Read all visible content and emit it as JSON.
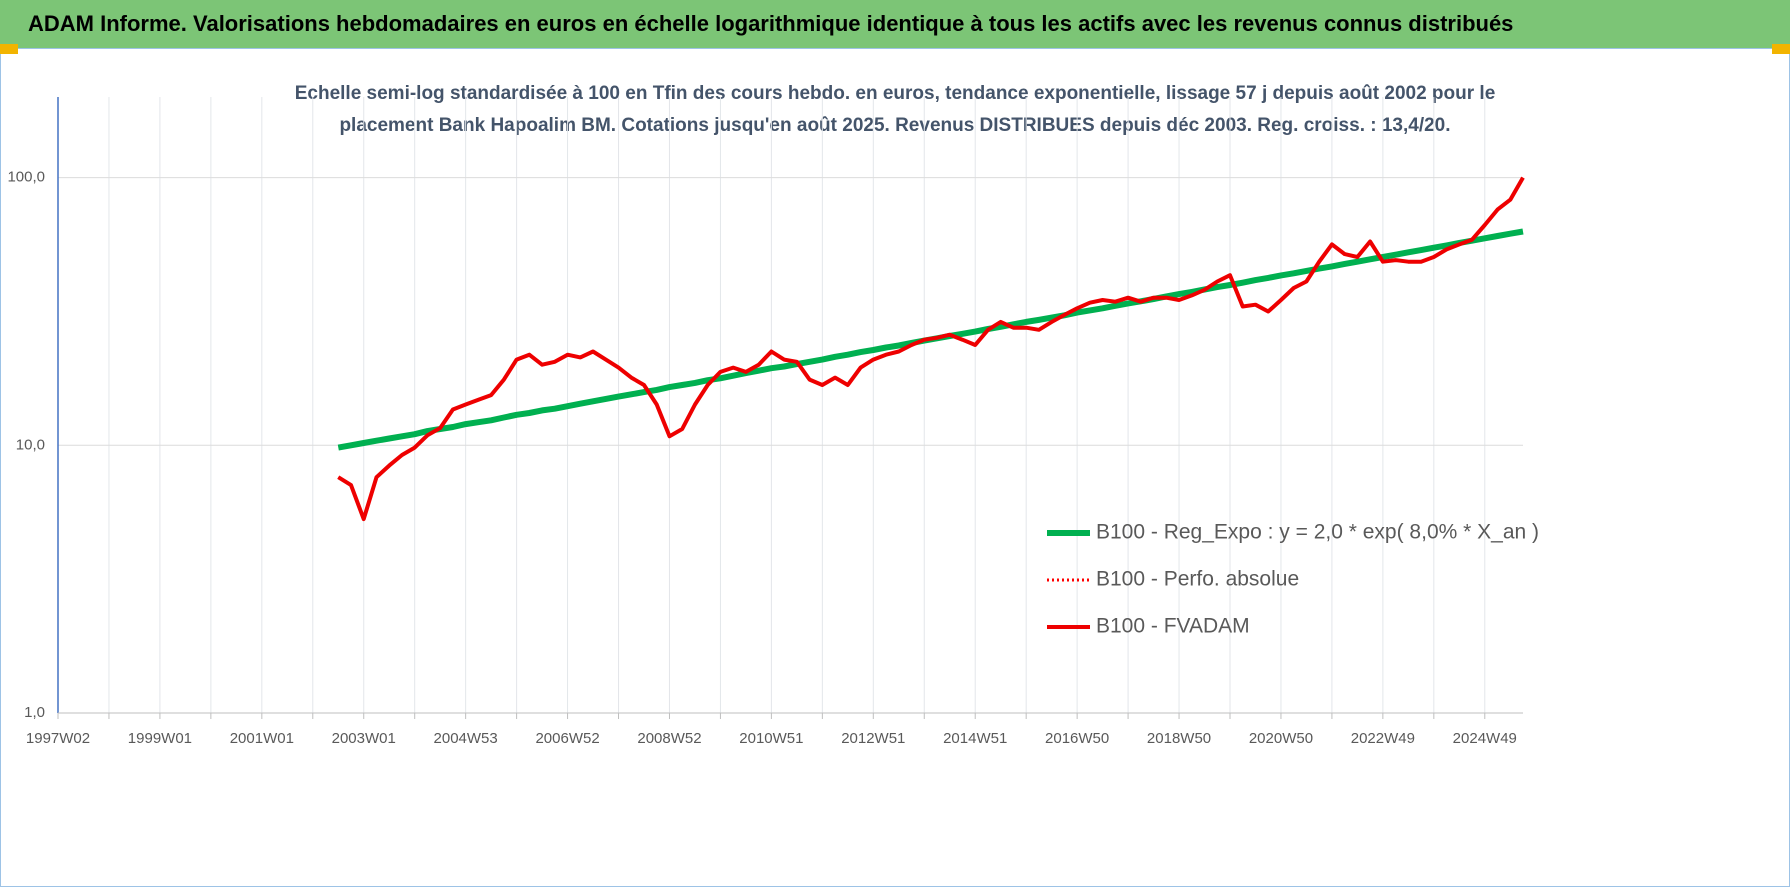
{
  "chart_data": {
    "type": "line",
    "title": "ADAM Informe. Valorisations hebdomadaires en euros en échelle logarithmique identique à tous les actifs avec les revenus connus distribués",
    "subtitle": "Echelle semi-log standardisée à 100 en Tfin des cours hebdo. en euros, tendance exponentielle, lissage 57 j depuis août 2002 pour le placement Bank Hapoalim BM. Cotations jusqu'en août 2025. Revenus DISTRIBUES depuis déc 2003. Reg. croiss. : 13,4/20.",
    "yscale": "log",
    "ylim": [
      1,
      200
    ],
    "yticks": [
      {
        "value": 1,
        "label": "1,0"
      },
      {
        "value": 10,
        "label": "10,0"
      },
      {
        "value": 100,
        "label": "100,0"
      }
    ],
    "grid": true,
    "categories": [
      "1997W02",
      null,
      null,
      null,
      null,
      null,
      null,
      null,
      "1999W01",
      null,
      null,
      null,
      null,
      null,
      null,
      null,
      "2001W01",
      null,
      null,
      null,
      null,
      null,
      null,
      null,
      "2003W01",
      null,
      null,
      null,
      null,
      null,
      null,
      null,
      "2004W53",
      null,
      null,
      null,
      null,
      null,
      null,
      null,
      "2006W52",
      null,
      null,
      null,
      null,
      null,
      null,
      null,
      "2008W52",
      null,
      null,
      null,
      null,
      null,
      null,
      null,
      "2010W51",
      null,
      null,
      null,
      null,
      null,
      null,
      null,
      "2012W51",
      null,
      null,
      null,
      null,
      null,
      null,
      null,
      "2014W51",
      null,
      null,
      null,
      null,
      null,
      null,
      null,
      "2016W50",
      null,
      null,
      null,
      null,
      null,
      null,
      null,
      "2018W50",
      null,
      null,
      null,
      null,
      null,
      null,
      null,
      "2020W50",
      null,
      null,
      null,
      null,
      null,
      null,
      null,
      "2022W49",
      null,
      null,
      null,
      null,
      null,
      null,
      null,
      "2024W49",
      null,
      null,
      null
    ],
    "series": [
      {
        "name": "B100 - Reg_Expo : y = 2,0 * exp( 8,0% *  X_an )",
        "color": "#00b050",
        "style": "solid",
        "values": [
          null,
          null,
          null,
          null,
          null,
          null,
          null,
          null,
          null,
          null,
          null,
          null,
          null,
          null,
          null,
          null,
          null,
          null,
          null,
          null,
          null,
          null,
          9.8,
          10.0,
          10.2,
          10.4,
          10.6,
          10.8,
          11.0,
          11.3,
          11.5,
          11.7,
          12.0,
          12.2,
          12.4,
          12.7,
          13.0,
          13.2,
          13.5,
          13.7,
          14.0,
          14.3,
          14.6,
          14.9,
          15.2,
          15.5,
          15.8,
          16.1,
          16.5,
          16.8,
          17.1,
          17.5,
          17.8,
          18.2,
          18.6,
          19.0,
          19.4,
          19.7,
          20.1,
          20.5,
          20.9,
          21.4,
          21.8,
          22.3,
          22.7,
          23.2,
          23.6,
          24.1,
          24.6,
          25.1,
          25.6,
          26.1,
          26.6,
          27.2,
          27.7,
          28.3,
          28.9,
          29.4,
          30.0,
          30.6,
          31.3,
          31.9,
          32.5,
          33.2,
          33.9,
          34.5,
          35.2,
          36.0,
          36.7,
          37.4,
          38.2,
          39.0,
          39.7,
          40.5,
          41.4,
          42.2,
          43.1,
          43.9,
          44.8,
          45.7,
          46.6,
          47.6,
          48.5,
          49.5,
          50.5,
          51.5,
          52.6,
          53.6,
          54.7,
          55.8,
          57.0,
          58.1,
          59.3,
          60.5,
          61.7,
          62.9
        ]
      },
      {
        "name": "B100 - Perfo. absolue",
        "color": "#ff0000",
        "style": "dotted",
        "values": [
          null,
          null,
          null,
          null,
          null,
          null,
          null,
          null,
          null,
          null,
          null,
          null,
          null,
          null,
          null,
          null,
          null,
          null,
          null,
          null,
          null,
          null,
          7.6,
          7.1,
          5.3,
          7.6,
          8.4,
          9.2,
          9.8,
          10.9,
          11.6,
          13.6,
          14.2,
          14.8,
          15.4,
          17.6,
          20.9,
          21.8,
          20.0,
          20.5,
          21.8,
          21.3,
          22.4,
          20.9,
          19.5,
          17.9,
          16.8,
          14.2,
          10.8,
          11.5,
          14.2,
          16.8,
          18.8,
          19.5,
          18.8,
          20.0,
          22.4,
          20.9,
          20.5,
          17.6,
          16.8,
          17.9,
          16.8,
          19.5,
          20.9,
          21.8,
          22.4,
          23.7,
          24.8,
          25.2,
          25.9,
          24.8,
          23.7,
          27.0,
          28.9,
          27.5,
          27.5,
          27.0,
          28.9,
          30.7,
          32.5,
          34.1,
          34.9,
          34.4,
          35.6,
          34.4,
          35.6,
          35.6,
          34.9,
          36.3,
          38.1,
          40.9,
          43.2,
          33.0,
          33.5,
          31.6,
          34.9,
          38.7,
          40.9,
          48.5,
          56.3,
          51.8,
          50.5,
          57.7,
          48.5,
          49.2,
          48.5,
          48.5,
          50.5,
          53.9,
          56.3,
          58.6,
          66.5,
          75.9,
          82.7,
          100.0
        ]
      },
      {
        "name": "B100 - FVADAM",
        "color": "#ee0000",
        "style": "solid",
        "values": [
          null,
          null,
          null,
          null,
          null,
          null,
          null,
          null,
          null,
          null,
          null,
          null,
          null,
          null,
          null,
          null,
          null,
          null,
          null,
          null,
          null,
          null,
          7.6,
          7.1,
          5.3,
          7.6,
          8.4,
          9.2,
          9.8,
          10.9,
          11.6,
          13.6,
          14.2,
          14.8,
          15.4,
          17.6,
          20.9,
          21.8,
          20.0,
          20.5,
          21.8,
          21.3,
          22.4,
          20.9,
          19.5,
          17.9,
          16.8,
          14.2,
          10.8,
          11.5,
          14.2,
          16.8,
          18.8,
          19.5,
          18.8,
          20.0,
          22.4,
          20.9,
          20.5,
          17.6,
          16.8,
          17.9,
          16.8,
          19.5,
          20.9,
          21.8,
          22.4,
          23.7,
          24.8,
          25.2,
          25.9,
          24.8,
          23.7,
          27.0,
          28.9,
          27.5,
          27.5,
          27.0,
          28.9,
          30.7,
          32.5,
          34.1,
          34.9,
          34.4,
          35.6,
          34.4,
          35.6,
          35.6,
          34.9,
          36.3,
          38.1,
          40.9,
          43.2,
          33.0,
          33.5,
          31.6,
          34.9,
          38.7,
          40.9,
          48.5,
          56.3,
          51.8,
          50.5,
          57.7,
          48.5,
          49.2,
          48.5,
          48.5,
          50.5,
          53.9,
          56.3,
          58.6,
          66.5,
          75.9,
          82.7,
          100.0
        ]
      }
    ]
  }
}
